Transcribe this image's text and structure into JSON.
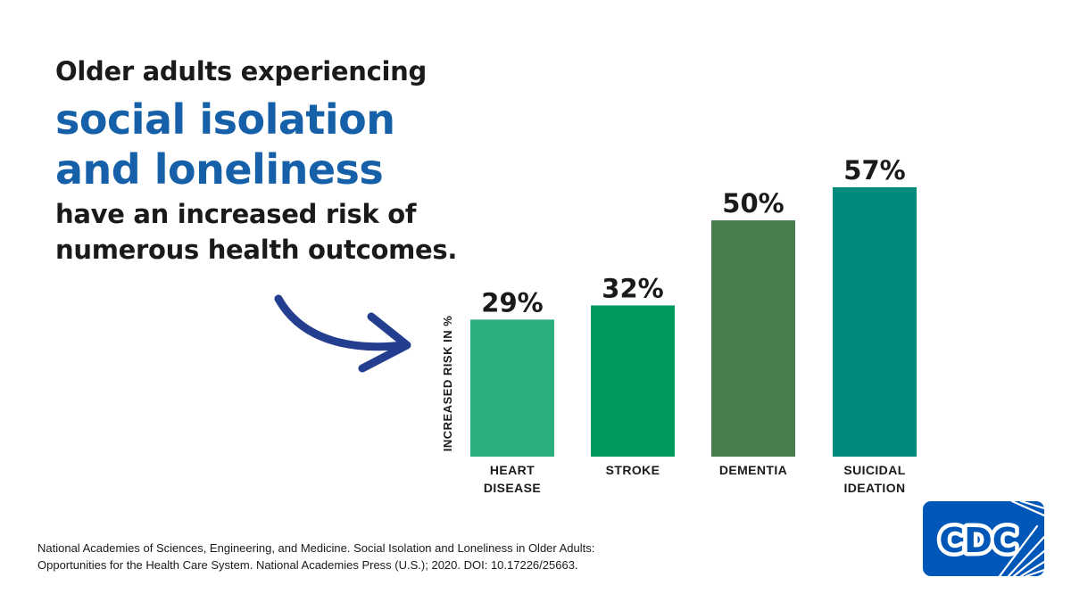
{
  "headline": {
    "line1": "Older adults experiencing",
    "emphasis_line1": "social isolation",
    "emphasis_line2": "and loneliness",
    "line2": "have an increased risk of",
    "line3": "numerous health outcomes."
  },
  "citation": {
    "line1": "National Academies of Sciences, Engineering, and Medicine. Social Isolation and Loneliness in Older Adults:",
    "line2": "Opportunities for the Health Care System. National Academies Press (U.S.); 2020. DOI: 10.17226/25663."
  },
  "logo": {
    "text": "CDC",
    "color": "#0057b8"
  },
  "colors": {
    "headline_emphasis": "#1560a8",
    "arrow": "#233d8f"
  },
  "chart_data": {
    "type": "bar",
    "categories": [
      [
        "HEART",
        "DISEASE"
      ],
      [
        "STROKE"
      ],
      [
        "DEMENTIA"
      ],
      [
        "SUICIDAL",
        "IDEATION"
      ]
    ],
    "values": [
      29,
      32,
      50,
      57
    ],
    "value_labels": [
      "29%",
      "32%",
      "50%",
      "57%"
    ],
    "bar_colors": [
      "#2aae7e",
      "#009a5e",
      "#477e50",
      "#008a7c"
    ],
    "ylabel": "INCREASED RISK IN %",
    "title": "",
    "xlabel": "",
    "ylim": [
      0,
      57
    ],
    "grid": false,
    "legend": "none"
  }
}
